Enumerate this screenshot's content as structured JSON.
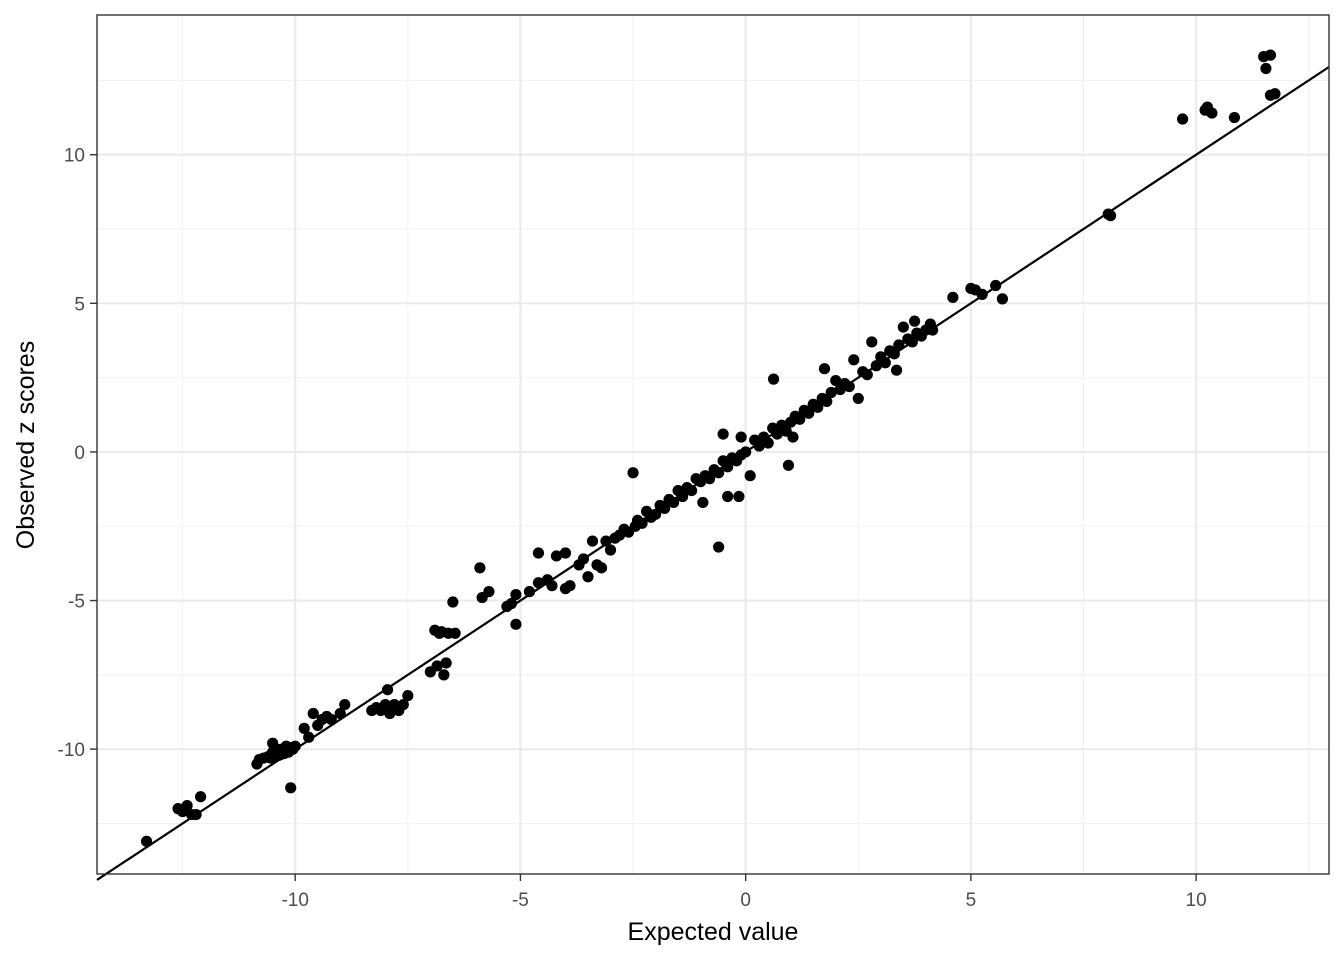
{
  "chart_data": {
    "type": "scatter",
    "title": "",
    "xlabel": "Expected value",
    "ylabel": "Observed z scores",
    "xlim": [
      -14.4,
      12.95
    ],
    "ylim": [
      -14.2,
      14.7
    ],
    "x_ticks": [
      -10,
      -5,
      0,
      5,
      10
    ],
    "x_tick_labels": [
      "-10",
      "-5",
      "0",
      "5",
      "10"
    ],
    "y_ticks": [
      -10,
      -5,
      0,
      5,
      10
    ],
    "y_tick_labels": [
      "-10",
      "-5",
      "0",
      "5",
      "10"
    ],
    "grid": true,
    "reference_line": {
      "slope": 1,
      "intercept": 0
    },
    "colors": {
      "point": "#000000",
      "line": "#000000",
      "grid": "#ebebeb",
      "border": "#333333"
    },
    "points": [
      [
        -13.3,
        -13.1
      ],
      [
        -12.6,
        -12.0
      ],
      [
        -12.4,
        -11.9
      ],
      [
        -12.5,
        -12.1
      ],
      [
        -12.3,
        -12.2
      ],
      [
        -12.2,
        -12.2
      ],
      [
        -12.1,
        -11.6
      ],
      [
        -10.85,
        -10.5
      ],
      [
        -10.8,
        -10.35
      ],
      [
        -10.7,
        -10.3
      ],
      [
        -10.6,
        -10.25
      ],
      [
        -10.55,
        -10.3
      ],
      [
        -10.5,
        -10.1
      ],
      [
        -10.45,
        -10.2
      ],
      [
        -10.4,
        -10.0
      ],
      [
        -10.35,
        -10.2
      ],
      [
        -10.3,
        -10.0
      ],
      [
        -10.25,
        -10.15
      ],
      [
        -10.2,
        -9.9
      ],
      [
        -10.15,
        -10.1
      ],
      [
        -10.1,
        -9.95
      ],
      [
        -10.05,
        -10.0
      ],
      [
        -10.0,
        -9.9
      ],
      [
        -10.5,
        -9.8
      ],
      [
        -10.1,
        -11.3
      ],
      [
        -9.8,
        -9.3
      ],
      [
        -9.7,
        -9.6
      ],
      [
        -9.6,
        -8.8
      ],
      [
        -9.5,
        -9.2
      ],
      [
        -9.4,
        -9.0
      ],
      [
        -9.3,
        -8.9
      ],
      [
        -9.2,
        -9.0
      ],
      [
        -9.0,
        -8.8
      ],
      [
        -8.9,
        -8.5
      ],
      [
        -8.3,
        -8.7
      ],
      [
        -8.2,
        -8.6
      ],
      [
        -8.1,
        -8.7
      ],
      [
        -8.0,
        -8.5
      ],
      [
        -7.95,
        -8.0
      ],
      [
        -7.9,
        -8.8
      ],
      [
        -7.85,
        -8.6
      ],
      [
        -7.8,
        -8.5
      ],
      [
        -7.7,
        -8.7
      ],
      [
        -7.6,
        -8.5
      ],
      [
        -7.5,
        -8.2
      ],
      [
        -7.0,
        -7.4
      ],
      [
        -6.9,
        -6.0
      ],
      [
        -6.85,
        -7.2
      ],
      [
        -6.8,
        -6.1
      ],
      [
        -6.75,
        -6.05
      ],
      [
        -6.7,
        -7.5
      ],
      [
        -6.65,
        -7.1
      ],
      [
        -6.6,
        -6.1
      ],
      [
        -6.5,
        -5.05
      ],
      [
        -6.45,
        -6.1
      ],
      [
        -5.9,
        -3.9
      ],
      [
        -5.85,
        -4.9
      ],
      [
        -5.7,
        -4.7
      ],
      [
        -5.3,
        -5.2
      ],
      [
        -5.2,
        -5.1
      ],
      [
        -5.1,
        -4.8
      ],
      [
        -5.1,
        -5.8
      ],
      [
        -4.8,
        -4.7
      ],
      [
        -4.6,
        -4.4
      ],
      [
        -4.6,
        -3.4
      ],
      [
        -4.4,
        -4.3
      ],
      [
        -4.3,
        -4.5
      ],
      [
        -4.2,
        -3.5
      ],
      [
        -4.0,
        -3.4
      ],
      [
        -4.0,
        -4.6
      ],
      [
        -3.9,
        -4.5
      ],
      [
        -3.7,
        -3.8
      ],
      [
        -3.6,
        -3.6
      ],
      [
        -3.5,
        -4.2
      ],
      [
        -3.4,
        -3.0
      ],
      [
        -3.3,
        -3.8
      ],
      [
        -3.2,
        -3.9
      ],
      [
        -3.1,
        -3.0
      ],
      [
        -3.0,
        -3.3
      ],
      [
        -2.9,
        -2.9
      ],
      [
        -2.8,
        -2.8
      ],
      [
        -2.7,
        -2.6
      ],
      [
        -2.6,
        -2.7
      ],
      [
        -2.5,
        -0.7
      ],
      [
        -2.45,
        -2.5
      ],
      [
        -2.4,
        -2.3
      ],
      [
        -2.3,
        -2.4
      ],
      [
        -2.2,
        -2.0
      ],
      [
        -2.1,
        -2.2
      ],
      [
        -2.0,
        -2.1
      ],
      [
        -1.9,
        -1.8
      ],
      [
        -1.8,
        -1.9
      ],
      [
        -1.7,
        -1.6
      ],
      [
        -1.6,
        -1.7
      ],
      [
        -1.5,
        -1.3
      ],
      [
        -1.4,
        -1.5
      ],
      [
        -1.3,
        -1.2
      ],
      [
        -1.2,
        -1.3
      ],
      [
        -1.1,
        -0.9
      ],
      [
        -1.0,
        -1.0
      ],
      [
        -0.95,
        -1.7
      ],
      [
        -0.9,
        -0.8
      ],
      [
        -0.8,
        -0.9
      ],
      [
        -0.7,
        -0.6
      ],
      [
        -0.6,
        -0.7
      ],
      [
        -0.5,
        -0.3
      ],
      [
        -0.4,
        -0.5
      ],
      [
        -0.3,
        -0.2
      ],
      [
        -0.2,
        -0.3
      ],
      [
        -0.1,
        -0.1
      ],
      [
        0.0,
        0.0
      ],
      [
        -0.6,
        -3.2
      ],
      [
        -0.5,
        0.6
      ],
      [
        -0.4,
        -1.5
      ],
      [
        -0.15,
        -1.5
      ],
      [
        -0.1,
        0.5
      ],
      [
        0.1,
        -0.8
      ],
      [
        0.2,
        0.4
      ],
      [
        0.3,
        0.2
      ],
      [
        0.4,
        0.5
      ],
      [
        0.5,
        0.3
      ],
      [
        0.6,
        0.8
      ],
      [
        0.62,
        2.45
      ],
      [
        0.7,
        0.6
      ],
      [
        0.8,
        0.9
      ],
      [
        0.9,
        0.7
      ],
      [
        0.95,
        -0.45
      ],
      [
        1.0,
        1.0
      ],
      [
        1.05,
        0.5
      ],
      [
        1.1,
        1.2
      ],
      [
        1.2,
        1.1
      ],
      [
        1.3,
        1.4
      ],
      [
        1.4,
        1.3
      ],
      [
        1.5,
        1.6
      ],
      [
        1.6,
        1.5
      ],
      [
        1.7,
        1.8
      ],
      [
        1.75,
        2.8
      ],
      [
        1.8,
        1.7
      ],
      [
        1.9,
        2.0
      ],
      [
        2.0,
        2.4
      ],
      [
        2.1,
        2.1
      ],
      [
        2.2,
        2.3
      ],
      [
        2.3,
        2.2
      ],
      [
        2.4,
        3.1
      ],
      [
        2.5,
        1.8
      ],
      [
        2.6,
        2.7
      ],
      [
        2.7,
        2.6
      ],
      [
        2.8,
        3.7
      ],
      [
        2.9,
        2.9
      ],
      [
        3.0,
        3.2
      ],
      [
        3.1,
        3.0
      ],
      [
        3.2,
        3.4
      ],
      [
        3.3,
        3.3
      ],
      [
        3.35,
        2.75
      ],
      [
        3.4,
        3.6
      ],
      [
        3.5,
        4.2
      ],
      [
        3.6,
        3.8
      ],
      [
        3.7,
        3.7
      ],
      [
        3.75,
        4.4
      ],
      [
        3.8,
        4.0
      ],
      [
        3.9,
        3.9
      ],
      [
        4.0,
        4.1
      ],
      [
        4.1,
        4.3
      ],
      [
        4.15,
        4.1
      ],
      [
        4.6,
        5.2
      ],
      [
        5.0,
        5.5
      ],
      [
        5.1,
        5.45
      ],
      [
        5.25,
        5.3
      ],
      [
        5.55,
        5.6
      ],
      [
        5.7,
        5.15
      ],
      [
        8.05,
        8.0
      ],
      [
        8.1,
        7.95
      ],
      [
        9.7,
        11.2
      ],
      [
        10.2,
        11.5
      ],
      [
        10.25,
        11.6
      ],
      [
        10.35,
        11.4
      ],
      [
        10.85,
        11.25
      ],
      [
        11.5,
        13.3
      ],
      [
        11.55,
        12.9
      ],
      [
        11.65,
        13.35
      ],
      [
        11.65,
        12.0
      ],
      [
        11.75,
        12.05
      ]
    ]
  }
}
